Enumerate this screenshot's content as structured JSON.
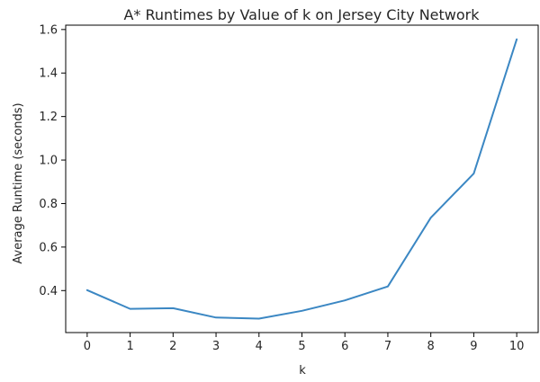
{
  "chart_data": {
    "type": "line",
    "title": "A* Runtimes by Value of k on Jersey City Network",
    "xlabel": "k",
    "ylabel": "Average Runtime (seconds)",
    "x": [
      0,
      1,
      2,
      3,
      4,
      5,
      6,
      7,
      8,
      9,
      10
    ],
    "series": [
      {
        "values": [
          0.402,
          0.316,
          0.319,
          0.276,
          0.271,
          0.307,
          0.355,
          0.419,
          0.735,
          0.938,
          1.555
        ]
      }
    ],
    "xticks": [
      "0",
      "1",
      "2",
      "3",
      "4",
      "5",
      "6",
      "7",
      "8",
      "9",
      "10"
    ],
    "yticks": [
      "0.4",
      "0.6",
      "0.8",
      "1.0",
      "1.2",
      "1.4",
      "1.6"
    ],
    "ytick_values": [
      0.4,
      0.6,
      0.8,
      1.0,
      1.2,
      1.4,
      1.6
    ],
    "xlim": [
      -0.5,
      10.5
    ],
    "ylim": [
      0.207,
      1.62
    ],
    "grid": false,
    "line_color": "#3b87c3"
  }
}
